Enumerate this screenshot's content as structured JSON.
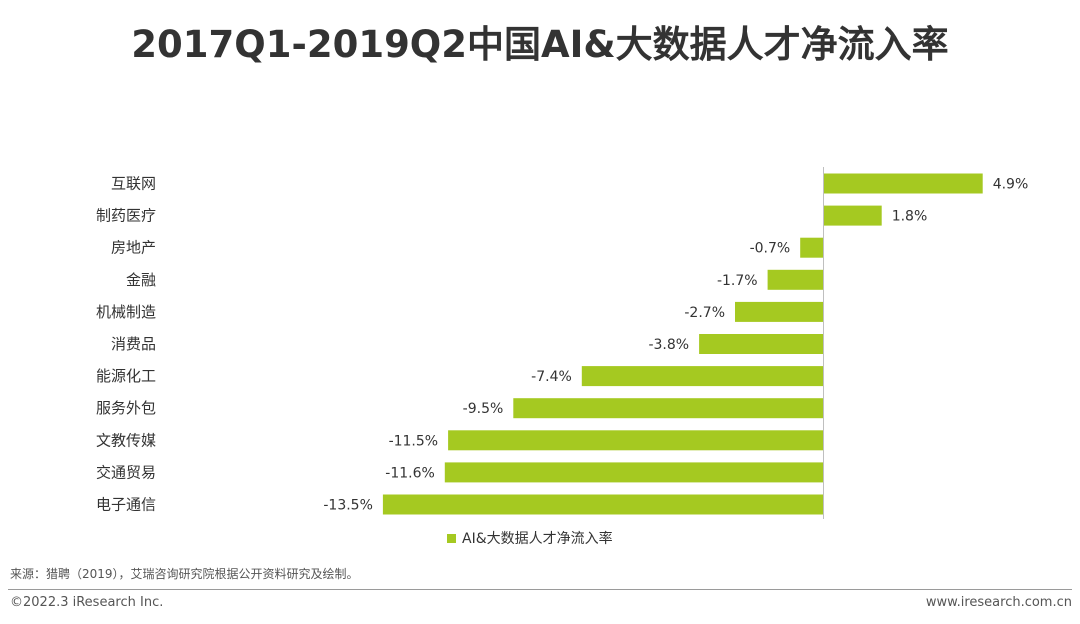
{
  "chart_data": {
    "type": "bar",
    "orientation": "horizontal",
    "title": "2017Q1-2019Q2中国AI&大数据人才净流入率",
    "categories": [
      "互联网",
      "制药医疗",
      "房地产",
      "金融",
      "机械制造",
      "消费品",
      "能源化工",
      "服务外包",
      "文教传媒",
      "交通贸易",
      "电子通信"
    ],
    "series": [
      {
        "name": "AI&大数据人才净流入率",
        "values": [
          4.9,
          1.8,
          -0.7,
          -1.7,
          -2.7,
          -3.8,
          -7.4,
          -9.5,
          -11.5,
          -11.6,
          -13.5
        ],
        "labels": [
          "4.9%",
          "1.8%",
          "-0.7%",
          "-1.7%",
          "-2.7%",
          "-3.8%",
          "-7.4%",
          "-9.5%",
          "-11.5%",
          "-11.6%",
          "-13.5%"
        ],
        "color": "#a5c921"
      }
    ],
    "xlim": [
      -13.5,
      4.9
    ],
    "grid": false,
    "legend_position": "bottom"
  },
  "source": "来源：猎聘（2019），艾瑞咨询研究院根据公开资料研究及绘制。",
  "copyright": "©2022.3 iResearch Inc.",
  "website": "www.iresearch.com.cn",
  "colors": {
    "bar": "#a5c921",
    "axis": "#bfbfbf",
    "text": "#333333"
  }
}
